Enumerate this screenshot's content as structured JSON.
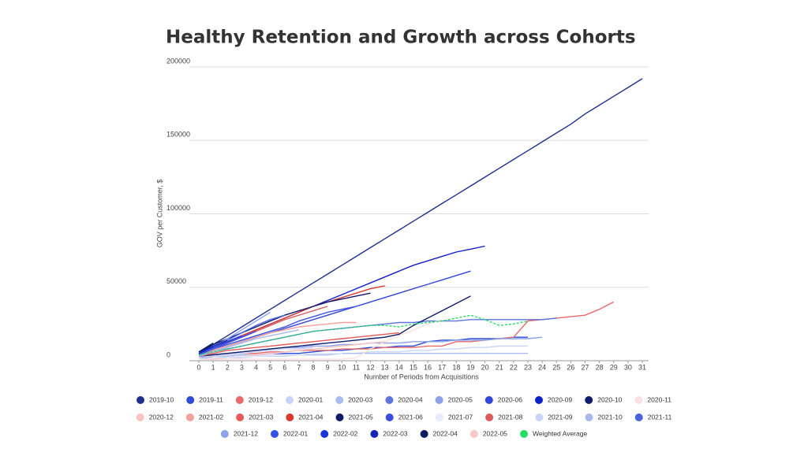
{
  "chart_data": {
    "type": "line",
    "title": "Healthy Retention and Growth across Cohorts",
    "x_label": "Number of Periods from Acquisitions",
    "y_label": "GOV per Customer, $",
    "x": [
      0,
      1,
      2,
      3,
      4,
      5,
      6,
      7,
      8,
      9,
      10,
      11,
      12,
      13,
      14,
      15,
      16,
      17,
      18,
      19,
      20,
      21,
      22,
      23,
      24,
      25,
      26,
      27,
      28,
      29,
      30,
      31
    ],
    "xlim": [
      0,
      31
    ],
    "xticks": [
      0,
      1,
      2,
      3,
      4,
      5,
      6,
      7,
      8,
      9,
      10,
      11,
      12,
      13,
      14,
      15,
      16,
      17,
      18,
      19,
      20,
      21,
      22,
      23,
      24,
      25,
      26,
      27,
      28,
      29,
      30,
      31
    ],
    "ylim": [
      0,
      200000
    ],
    "yticks": [
      0,
      50000,
      100000,
      150000,
      200000
    ],
    "grid": true,
    "legend": "bottom",
    "series": [
      {
        "name": "2019-10",
        "color": "#1f2f8f",
        "values": [
          5000,
          11000,
          17000,
          23000,
          29000,
          35000,
          41000,
          47000,
          53000,
          59000,
          65000,
          71000,
          77000,
          83000,
          89000,
          95000,
          101000,
          107000,
          113000,
          119000,
          125000,
          131000,
          137000,
          143000,
          149000,
          155000,
          161000,
          168000,
          174000,
          180000,
          186000,
          192000
        ]
      },
      {
        "name": "2019-11",
        "color": "#2c4bd6",
        "values": [
          2000,
          2000,
          2000,
          3000,
          4000,
          4000,
          5000,
          5000,
          6000,
          7000,
          7000,
          8000,
          9000,
          9000,
          10000,
          10000,
          13000,
          14000,
          14000,
          15000,
          15000,
          15000,
          16000,
          16000,
          null,
          null,
          null,
          null,
          null,
          null,
          null,
          null
        ]
      },
      {
        "name": "2019-12",
        "color": "#e86a6a",
        "values": [
          2000,
          3000,
          4000,
          5000,
          5000,
          6000,
          6000,
          7000,
          7000,
          7000,
          8000,
          8000,
          8000,
          9000,
          9000,
          9000,
          10000,
          10000,
          13000,
          13000,
          14000,
          15000,
          16000,
          27000,
          28000,
          29000,
          30000,
          31000,
          35000,
          40000,
          null,
          null
        ]
      },
      {
        "name": "2020-01",
        "color": "#c8d4f5",
        "values": [
          1000,
          1000,
          2000,
          2000,
          3000,
          3000,
          3000,
          4000,
          4000,
          4000,
          5000,
          5000,
          6000,
          6000,
          6000,
          7000,
          7000,
          8000,
          8000,
          9000,
          9000,
          10000,
          10000,
          10000,
          null,
          null,
          null,
          null,
          null,
          null,
          null,
          null
        ]
      },
      {
        "name": "2020-03",
        "color": "#a9bdf2",
        "values": [
          1000,
          2000,
          3000,
          4000,
          4000,
          4000,
          4000,
          4000,
          4000,
          4000,
          5000,
          5000,
          5000,
          5000,
          5000,
          5000,
          5000,
          5000,
          5000,
          5000,
          5000,
          5000,
          5000,
          5000,
          null,
          null,
          null,
          null,
          null,
          null,
          null,
          null
        ]
      },
      {
        "name": "2020-04",
        "color": "#5b74e0",
        "values": [
          4000,
          6000,
          8000,
          10000,
          12000,
          14000,
          16000,
          18000,
          20000,
          21000,
          22000,
          23000,
          24000,
          25000,
          26000,
          26000,
          27000,
          27000,
          27000,
          28000,
          28000,
          28000,
          28000,
          28000,
          28000,
          29000,
          null,
          null,
          null,
          null,
          null,
          null
        ]
      },
      {
        "name": "2020-05",
        "color": "#8aa0ea",
        "values": [
          3000,
          4000,
          5000,
          6000,
          7000,
          8000,
          9000,
          9000,
          10000,
          10000,
          11000,
          11000,
          12000,
          12000,
          12000,
          13000,
          13000,
          13000,
          14000,
          14000,
          14000,
          15000,
          15000,
          15000,
          16000,
          null,
          null,
          null,
          null,
          null,
          null,
          null
        ]
      },
      {
        "name": "2020-06",
        "color": "#2f46d8",
        "values": [
          4000,
          7000,
          10000,
          13000,
          16000,
          19000,
          22000,
          25000,
          28000,
          31000,
          34000,
          37000,
          40000,
          43000,
          46000,
          49000,
          52000,
          55000,
          58000,
          61000,
          null,
          null,
          null,
          null,
          null,
          null,
          null,
          null,
          null,
          null,
          null,
          null
        ]
      },
      {
        "name": "2020-09",
        "color": "#1020c8",
        "values": [
          5000,
          9000,
          13000,
          17000,
          21000,
          25000,
          29000,
          33000,
          37000,
          41000,
          45000,
          49000,
          53000,
          57000,
          61000,
          65000,
          68000,
          71000,
          74000,
          76000,
          78000,
          null,
          null,
          null,
          null,
          null,
          null,
          null,
          null,
          null,
          null,
          null
        ]
      },
      {
        "name": "2020-10",
        "color": "#101c6e",
        "values": [
          3000,
          4000,
          5000,
          6000,
          7000,
          8000,
          9000,
          10000,
          11000,
          12000,
          13000,
          14000,
          15000,
          16000,
          18000,
          24000,
          29000,
          34000,
          39000,
          44000,
          null,
          null,
          null,
          null,
          null,
          null,
          null,
          null,
          null,
          null,
          null,
          null
        ]
      },
      {
        "name": "2020-11",
        "color": "#fde0e0",
        "values": [
          1000,
          1000,
          1000,
          1000,
          1000,
          1000,
          1000,
          1000,
          1000,
          1000,
          1000,
          2000,
          8000,
          13000,
          17000,
          21000,
          25000,
          28000,
          null,
          null,
          null,
          null,
          null,
          null,
          null,
          null,
          null,
          null,
          null,
          null,
          null,
          null
        ]
      },
      {
        "name": "2020-12",
        "color": "#f7c3c3",
        "values": [
          1000,
          1000,
          2000,
          3000,
          4000,
          5000,
          6000,
          7000,
          8000,
          9000,
          10000,
          11000,
          12000,
          13000,
          null,
          null,
          null,
          null,
          null,
          null,
          null,
          null,
          null,
          null,
          null,
          null,
          null,
          null,
          null,
          null,
          null,
          null
        ]
      },
      {
        "name": "2021-02",
        "color": "#f2a09a",
        "values": [
          4000,
          7000,
          10000,
          13000,
          16000,
          19000,
          21000,
          23000,
          24000,
          25000,
          26000,
          26000,
          null,
          null,
          null,
          null,
          null,
          null,
          null,
          null,
          null,
          null,
          null,
          null,
          null,
          null,
          null,
          null,
          null,
          null,
          null,
          null
        ]
      },
      {
        "name": "2021-03",
        "color": "#e85a5a",
        "values": [
          3000,
          5000,
          7000,
          8000,
          9000,
          10000,
          11000,
          12000,
          13000,
          14000,
          15000,
          16000,
          17000,
          18000,
          19000,
          null,
          null,
          null,
          null,
          null,
          null,
          null,
          null,
          null,
          null,
          null,
          null,
          null,
          null,
          null,
          null,
          null
        ]
      },
      {
        "name": "2021-04",
        "color": "#d93a2e",
        "values": [
          5000,
          9000,
          13000,
          17000,
          21000,
          25000,
          29000,
          33000,
          37000,
          40000,
          43000,
          46000,
          49000,
          51000,
          null,
          null,
          null,
          null,
          null,
          null,
          null,
          null,
          null,
          null,
          null,
          null,
          null,
          null,
          null,
          null,
          null,
          null
        ]
      },
      {
        "name": "2021-05",
        "color": "#0f1a6b",
        "values": [
          6000,
          11000,
          15000,
          19000,
          23000,
          27000,
          31000,
          34000,
          37000,
          40000,
          42000,
          44000,
          46000,
          null,
          null,
          null,
          null,
          null,
          null,
          null,
          null,
          null,
          null,
          null,
          null,
          null,
          null,
          null,
          null,
          null,
          null,
          null
        ]
      },
      {
        "name": "2021-06",
        "color": "#3a4fe0",
        "values": [
          5000,
          8000,
          11000,
          14000,
          17000,
          20000,
          23000,
          27000,
          30000,
          33000,
          35000,
          37000,
          null,
          null,
          null,
          null,
          null,
          null,
          null,
          null,
          null,
          null,
          null,
          null,
          null,
          null,
          null,
          null,
          null,
          null,
          null,
          null
        ]
      },
      {
        "name": "2021-07",
        "color": "#e6eafb",
        "values": [
          1000,
          2000,
          2000,
          3000,
          3000,
          4000,
          4000,
          4000,
          5000,
          5000,
          5000,
          null,
          null,
          null,
          null,
          null,
          null,
          null,
          null,
          null,
          null,
          null,
          null,
          null,
          null,
          null,
          null,
          null,
          null,
          null,
          null,
          null
        ]
      },
      {
        "name": "2021-08",
        "color": "#d95b5b",
        "values": [
          4000,
          8000,
          12000,
          16000,
          20000,
          24000,
          28000,
          31000,
          34000,
          37000,
          null,
          null,
          null,
          null,
          null,
          null,
          null,
          null,
          null,
          null,
          null,
          null,
          null,
          null,
          null,
          null,
          null,
          null,
          null,
          null,
          null,
          null
        ]
      },
      {
        "name": "2021-09",
        "color": "#c9d6f7",
        "values": [
          2000,
          3000,
          4000,
          5000,
          6000,
          7000,
          8000,
          8000,
          9000,
          null,
          null,
          null,
          null,
          null,
          null,
          null,
          null,
          null,
          null,
          null,
          null,
          null,
          null,
          null,
          null,
          null,
          null,
          null,
          null,
          null,
          null,
          null
        ]
      },
      {
        "name": "2021-10",
        "color": "#a8b8ef",
        "values": [
          3000,
          6000,
          9000,
          12000,
          15000,
          17000,
          19000,
          21000,
          null,
          null,
          null,
          null,
          null,
          null,
          null,
          null,
          null,
          null,
          null,
          null,
          null,
          null,
          null,
          null,
          null,
          null,
          null,
          null,
          null,
          null,
          null,
          null
        ]
      },
      {
        "name": "2021-11",
        "color": "#4a63da",
        "values": [
          4000,
          9000,
          14000,
          19000,
          24000,
          28000,
          31000,
          null,
          null,
          null,
          null,
          null,
          null,
          null,
          null,
          null,
          null,
          null,
          null,
          null,
          null,
          null,
          null,
          null,
          null,
          null,
          null,
          null,
          null,
          null,
          null,
          null
        ]
      },
      {
        "name": "2021-12",
        "color": "#8da3ee",
        "values": [
          3000,
          9000,
          15000,
          21000,
          27000,
          33000,
          null,
          null,
          null,
          null,
          null,
          null,
          null,
          null,
          null,
          null,
          null,
          null,
          null,
          null,
          null,
          null,
          null,
          null,
          null,
          null,
          null,
          null,
          null,
          null,
          null,
          null
        ]
      },
      {
        "name": "2022-01",
        "color": "#3351e8",
        "values": [
          4000,
          8000,
          12000,
          16000,
          20000,
          null,
          null,
          null,
          null,
          null,
          null,
          null,
          null,
          null,
          null,
          null,
          null,
          null,
          null,
          null,
          null,
          null,
          null,
          null,
          null,
          null,
          null,
          null,
          null,
          null,
          null,
          null
        ]
      },
      {
        "name": "2022-02",
        "color": "#1a34d8",
        "values": [
          5000,
          9000,
          13000,
          17000,
          null,
          null,
          null,
          null,
          null,
          null,
          null,
          null,
          null,
          null,
          null,
          null,
          null,
          null,
          null,
          null,
          null,
          null,
          null,
          null,
          null,
          null,
          null,
          null,
          null,
          null,
          null,
          null
        ]
      },
      {
        "name": "2022-03",
        "color": "#1524b5",
        "values": [
          5000,
          10000,
          14000,
          null,
          null,
          null,
          null,
          null,
          null,
          null,
          null,
          null,
          null,
          null,
          null,
          null,
          null,
          null,
          null,
          null,
          null,
          null,
          null,
          null,
          null,
          null,
          null,
          null,
          null,
          null,
          null,
          null
        ]
      },
      {
        "name": "2022-04",
        "color": "#0c1a5e",
        "values": [
          6000,
          12000,
          null,
          null,
          null,
          null,
          null,
          null,
          null,
          null,
          null,
          null,
          null,
          null,
          null,
          null,
          null,
          null,
          null,
          null,
          null,
          null,
          null,
          null,
          null,
          null,
          null,
          null,
          null,
          null,
          null,
          null
        ]
      },
      {
        "name": "2022-05",
        "color": "#f9c6c6",
        "values": [
          2000,
          null,
          null,
          null,
          null,
          null,
          null,
          null,
          null,
          null,
          null,
          null,
          null,
          null,
          null,
          null,
          null,
          null,
          null,
          null,
          null,
          null,
          null,
          null,
          null,
          null,
          null,
          null,
          null,
          null,
          null,
          null
        ]
      },
      {
        "name": "Weighted Average",
        "color": "#22dd66",
        "dashed": true,
        "values": [
          4000,
          6000,
          8000,
          10000,
          12000,
          14000,
          16000,
          18000,
          20000,
          21000,
          22000,
          23000,
          24000,
          24000,
          23000,
          25000,
          26000,
          27000,
          29000,
          31000,
          28000,
          24000,
          25000,
          27000,
          null,
          null,
          null,
          null,
          null,
          null,
          null,
          null
        ]
      }
    ]
  }
}
